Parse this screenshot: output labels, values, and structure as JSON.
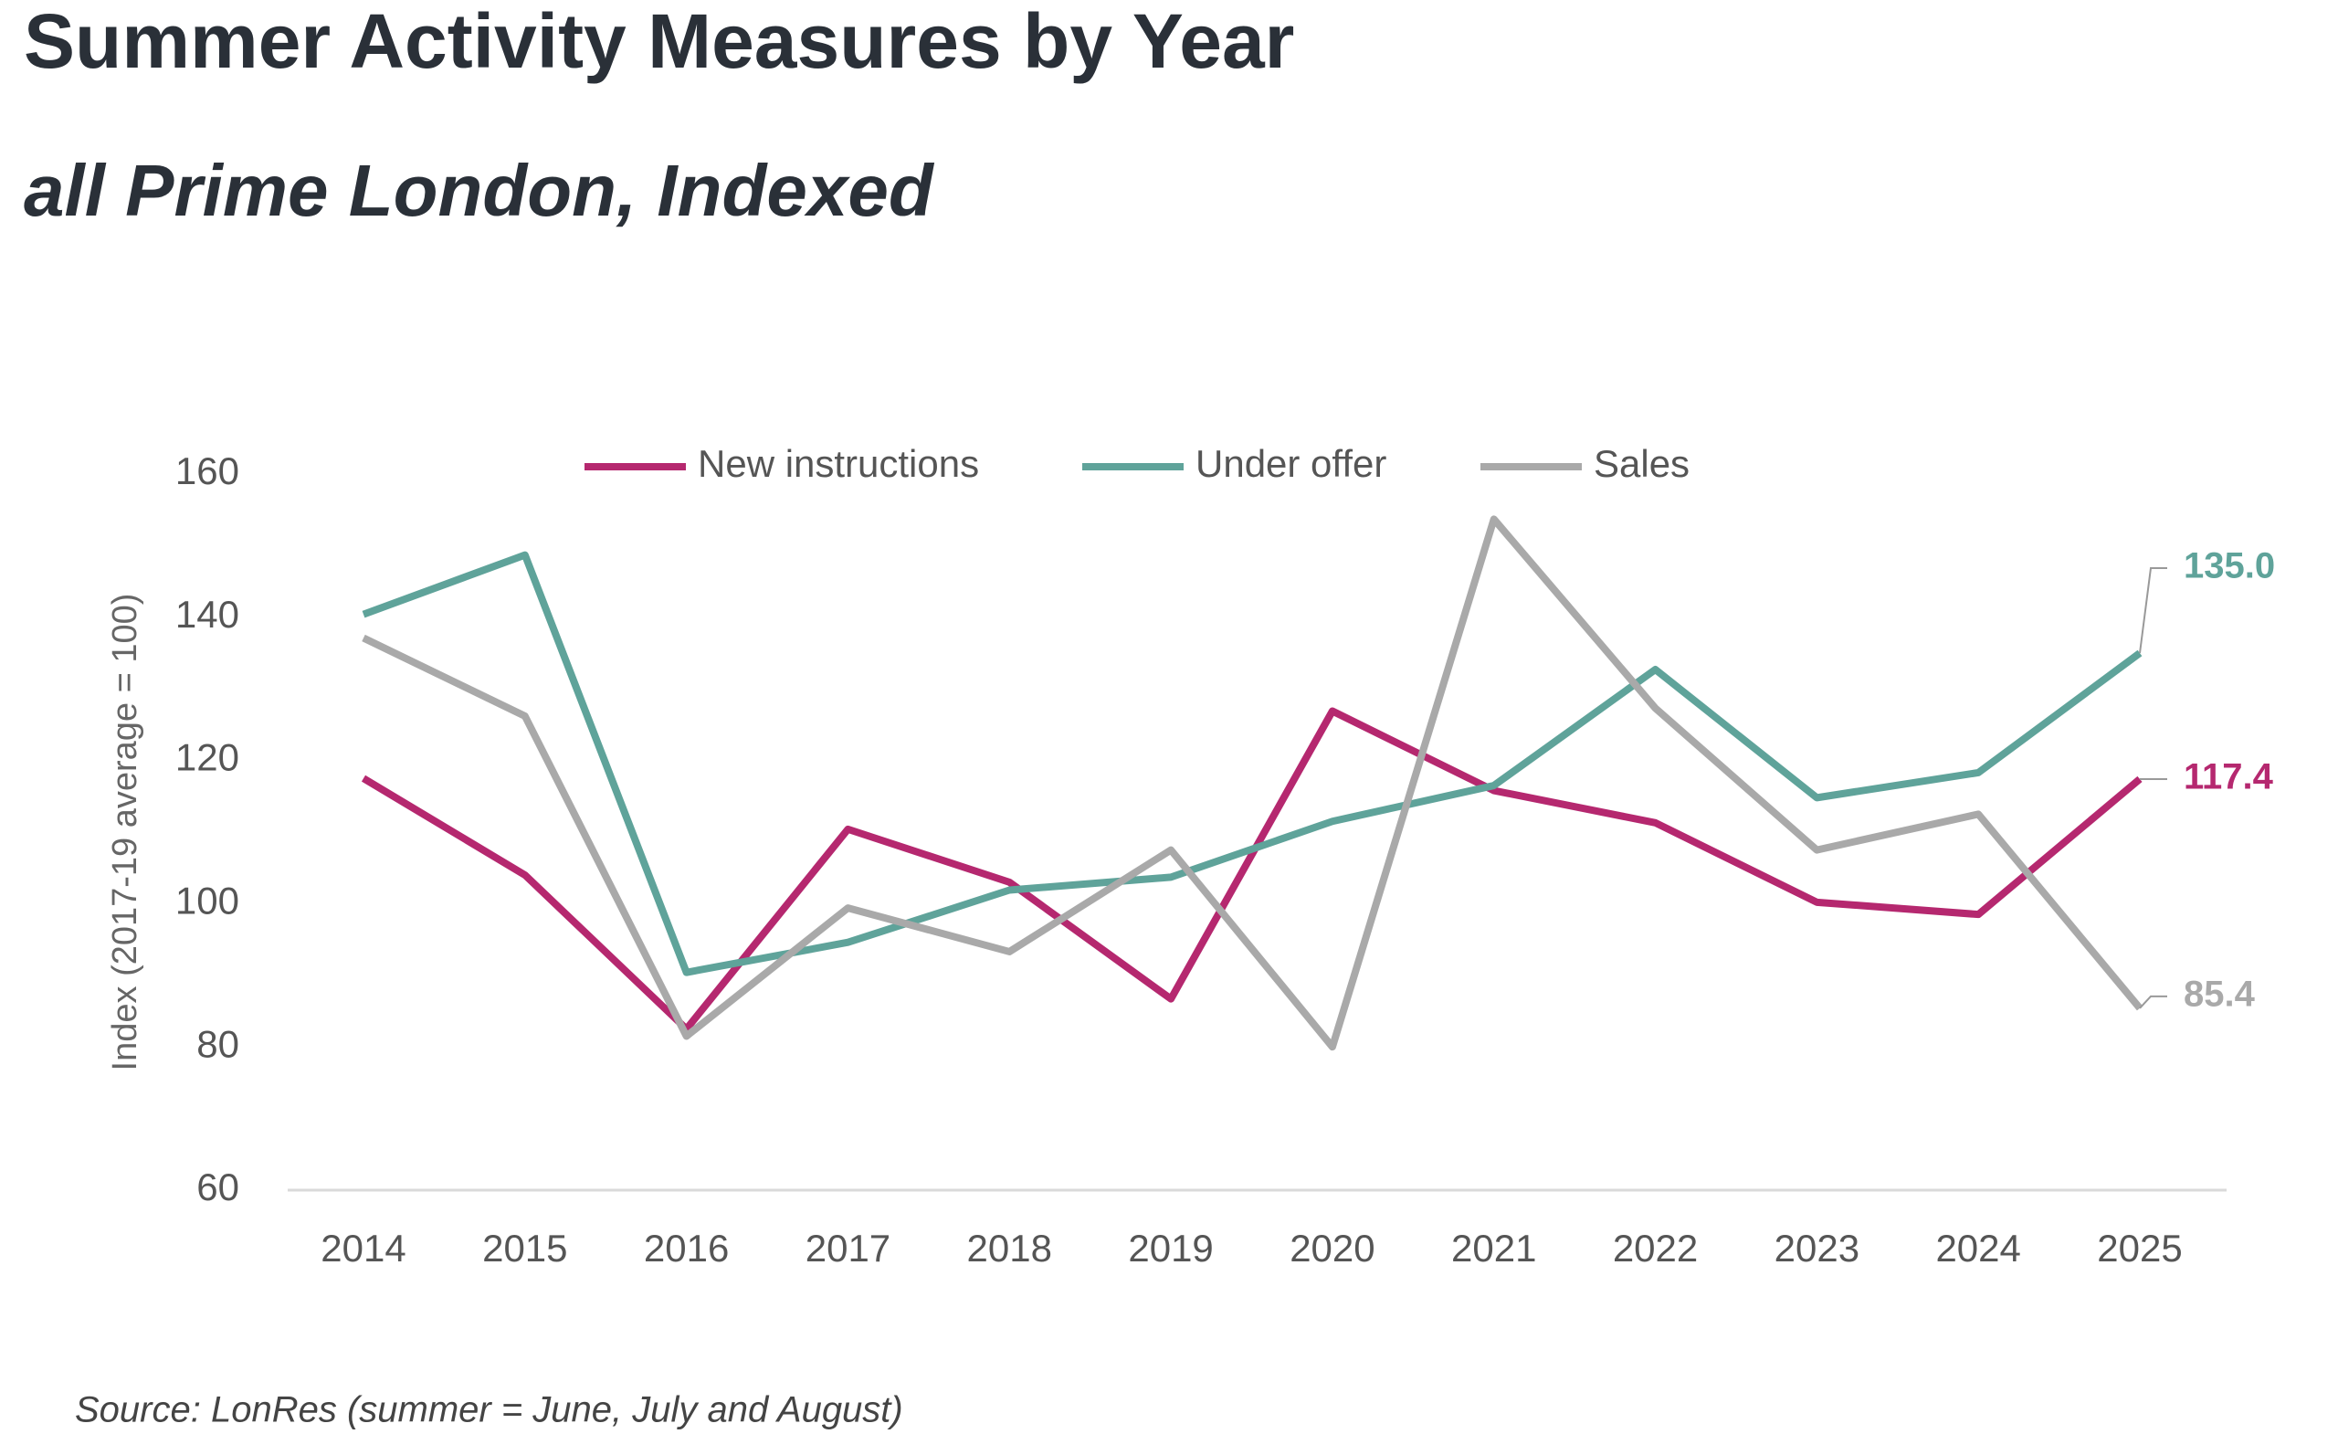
{
  "chart_data": {
    "type": "line",
    "title": "Summer Activity Measures by Year",
    "subtitle": "all Prime London, Indexed",
    "y_label": "Index (2017-19 average = 100)",
    "source": "Source: LonRes (summer = June, July and August)",
    "categories": [
      "2014",
      "2015",
      "2016",
      "2017",
      "2018",
      "2019",
      "2020",
      "2021",
      "2022",
      "2023",
      "2024",
      "2025"
    ],
    "series": [
      {
        "name": "New instructions",
        "color": "#b5286f",
        "values": [
          117.5,
          104,
          82.5,
          110.4,
          103,
          86.7,
          126.9,
          115.8,
          111.3,
          100.2,
          98.5,
          117.4
        ],
        "value_labels": [
          null,
          null,
          null,
          null,
          null,
          null,
          null,
          null,
          null,
          null,
          null,
          "117.4"
        ]
      },
      {
        "name": "Under offer",
        "color": "#5fa39a",
        "values": [
          140.4,
          148.7,
          90.4,
          94.6,
          101.9,
          103.7,
          111.5,
          116.5,
          132.7,
          114.8,
          118.3,
          135
        ],
        "value_labels": [
          null,
          null,
          null,
          null,
          null,
          null,
          null,
          null,
          null,
          null,
          null,
          "135.0"
        ]
      },
      {
        "name": "Sales",
        "color": "#a9a9a9",
        "values": [
          137.1,
          126.2,
          81.5,
          99.4,
          93.3,
          107.5,
          80,
          153.7,
          127.3,
          107.5,
          112.5,
          85.4
        ],
        "value_labels": [
          null,
          null,
          null,
          null,
          null,
          null,
          null,
          null,
          null,
          null,
          null,
          "85.4"
        ]
      }
    ],
    "ylim": [
      60,
      160
    ],
    "yticks": [
      60,
      80,
      100,
      120,
      140,
      160
    ],
    "grid": false
  }
}
